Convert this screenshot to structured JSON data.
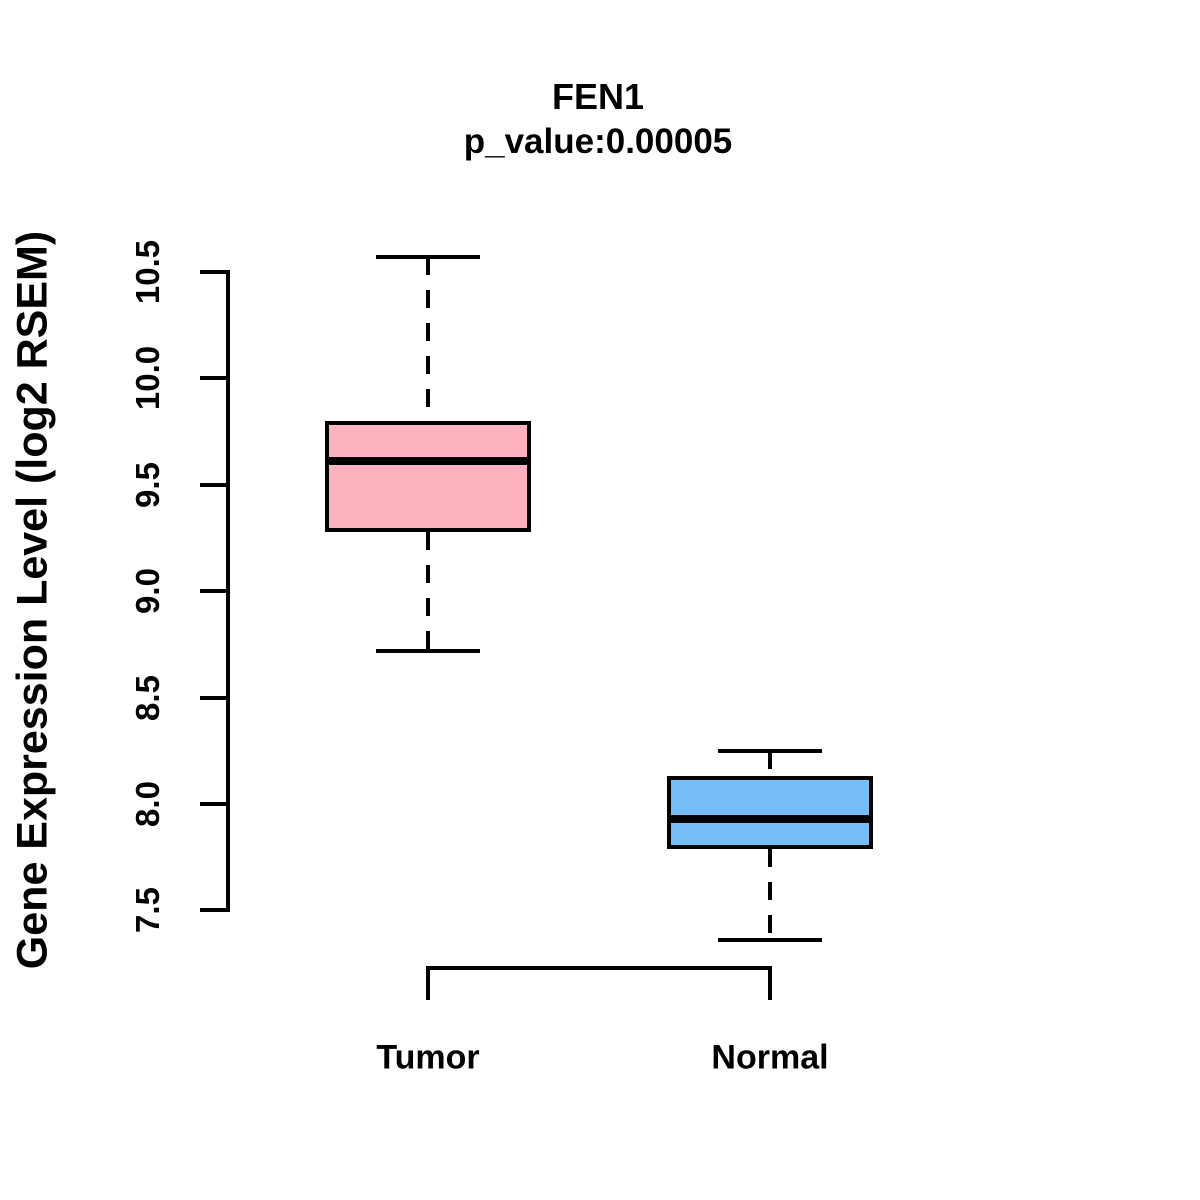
{
  "title": "FEN1",
  "subtitle": "p_value:0.00005",
  "chart_data": {
    "type": "boxplot",
    "title": "FEN1",
    "subtitle": "p_value:0.00005",
    "ylabel": "Gene Expression Level (log2 RSEM)",
    "xlabel": "",
    "ylim": [
      7.5,
      10.5
    ],
    "yticks": [
      7.5,
      8.0,
      8.5,
      9.0,
      9.5,
      10.0,
      10.5
    ],
    "ytick_labels": [
      "7.5",
      "8.0",
      "8.5",
      "9.0",
      "9.5",
      "10.0",
      "10.5"
    ],
    "grid": false,
    "legend": "none",
    "box_border_color": "#000000",
    "median_color": "#000000",
    "groups": [
      {
        "label": "Tumor",
        "color": "#FFB3C1",
        "whisker_low": 8.72,
        "q1": 9.28,
        "median": 9.61,
        "q3": 9.8,
        "whisker_high": 10.57
      },
      {
        "label": "Normal",
        "color": "#75BDF5",
        "whisker_low": 7.36,
        "q1": 7.79,
        "median": 7.93,
        "q3": 8.13,
        "whisker_high": 8.25
      }
    ]
  }
}
